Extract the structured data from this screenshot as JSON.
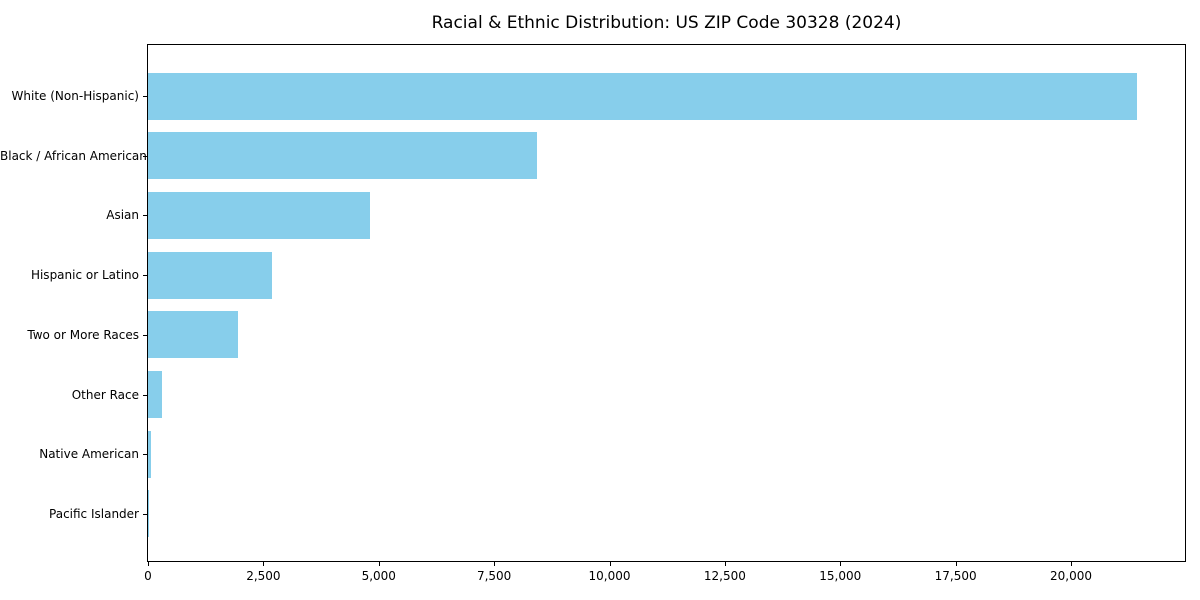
{
  "chart_data": {
    "type": "bar",
    "orientation": "horizontal",
    "title": "Racial & Ethnic Distribution: US ZIP Code 30328 (2024)",
    "categories": [
      "White (Non-Hispanic)",
      "Black / African American",
      "Asian",
      "Hispanic or Latino",
      "Two or More Races",
      "Other Race",
      "Native American",
      "Pacific Islander"
    ],
    "values": [
      21430,
      8420,
      4810,
      2690,
      1950,
      310,
      65,
      15
    ],
    "xlabel": "",
    "ylabel": "",
    "xlim": [
      0,
      22470
    ],
    "x_ticks": [
      0,
      2500,
      5000,
      7500,
      10000,
      12500,
      15000,
      17500,
      20000
    ],
    "x_tick_labels": [
      "0",
      "2,500",
      "5,000",
      "7,500",
      "10,000",
      "12,500",
      "15,000",
      "17,500",
      "20,000"
    ],
    "bar_color": "#87CEEB",
    "grid": false,
    "legend": "none",
    "frame_color": "#000000",
    "background_color": "#ffffff"
  }
}
